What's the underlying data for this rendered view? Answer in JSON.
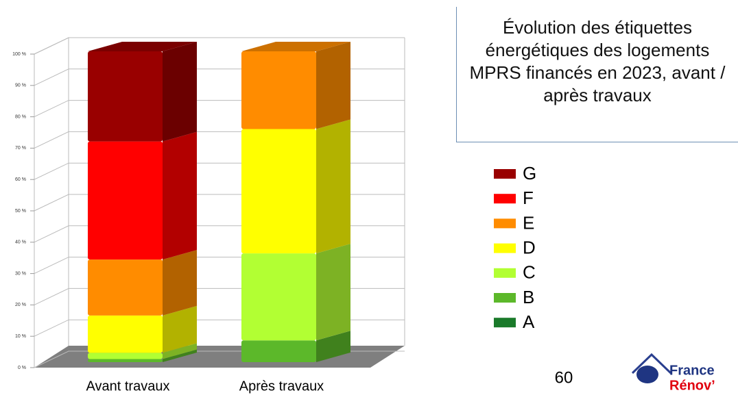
{
  "chart_data": {
    "type": "stacked-bar-3d",
    "title": "Évolution des étiquettes énergétiques des logements MPRS financés en 2023, avant / après travaux",
    "categories": [
      "Avant travaux",
      "Après travaux"
    ],
    "series": [
      {
        "name": "G",
        "color": "#990000",
        "values": [
          29,
          0
        ]
      },
      {
        "name": "F",
        "color": "#ff0000",
        "values": [
          38,
          0
        ]
      },
      {
        "name": "E",
        "color": "#ff8c00",
        "values": [
          18,
          25
        ]
      },
      {
        "name": "D",
        "color": "#ffff00",
        "values": [
          12,
          40
        ]
      },
      {
        "name": "C",
        "color": "#b2ff33",
        "values": [
          2,
          28
        ]
      },
      {
        "name": "B",
        "color": "#5cb82a",
        "values": [
          1,
          7
        ]
      },
      {
        "name": "A",
        "color": "#1a7a2a",
        "values": [
          0,
          0
        ]
      }
    ],
    "ylim": [
      0,
      100
    ],
    "yticks": [
      {
        "value": 0,
        "label": "0 %"
      },
      {
        "value": 10,
        "label": "10 %"
      },
      {
        "value": 20,
        "label": "20 %"
      },
      {
        "value": 30,
        "label": "30 %"
      },
      {
        "value": 40,
        "label": "40 %"
      },
      {
        "value": 50,
        "label": "50 %"
      },
      {
        "value": 60,
        "label": "60 %"
      },
      {
        "value": 70,
        "label": "70 %"
      },
      {
        "value": 80,
        "label": "80 %"
      },
      {
        "value": 90,
        "label": "90 %"
      },
      {
        "value": 100,
        "label": "100 %"
      }
    ],
    "grid": true
  },
  "page_number": "60",
  "logo": {
    "line1": "France",
    "line2": "Rénov’"
  }
}
